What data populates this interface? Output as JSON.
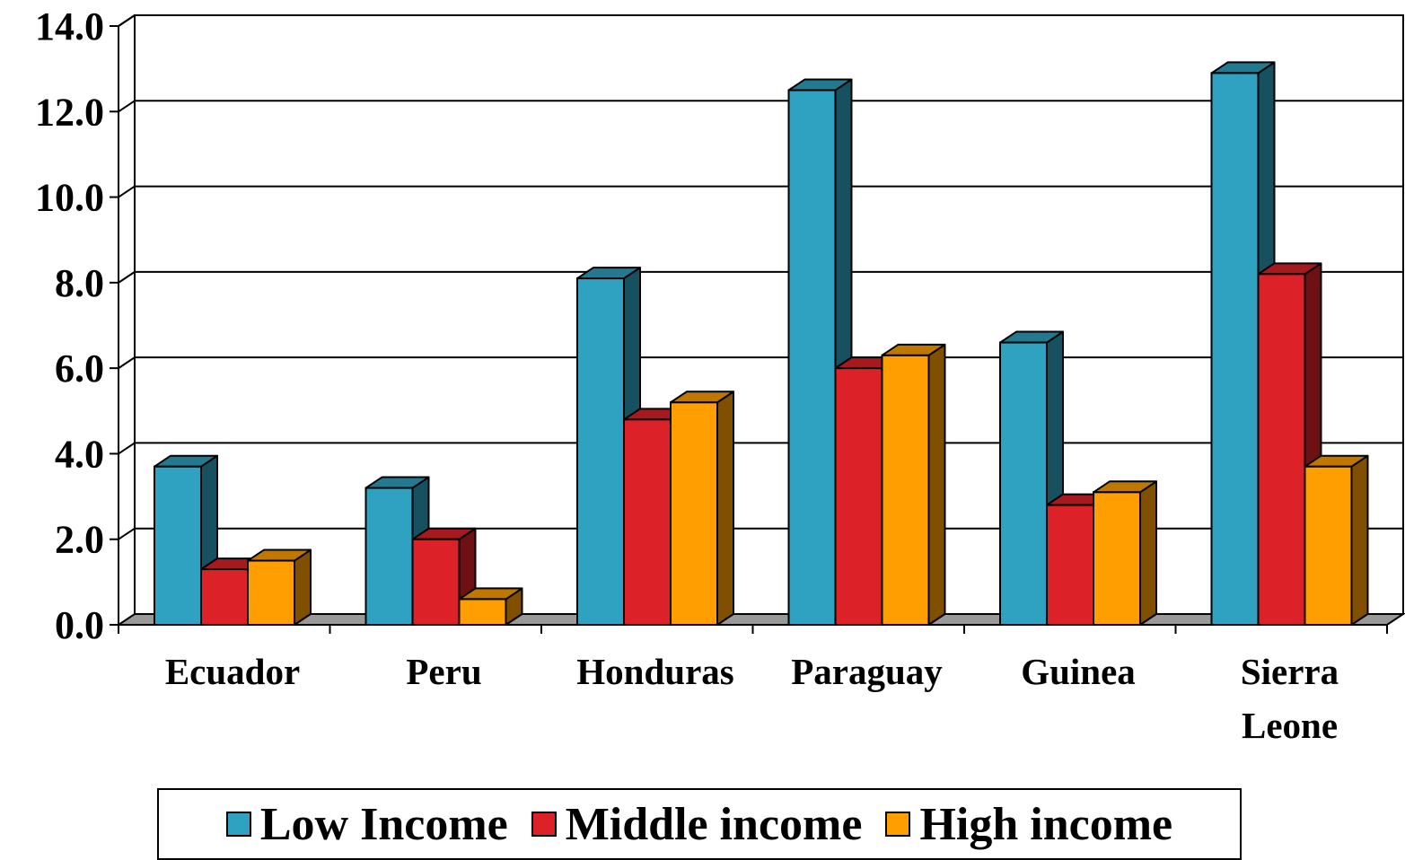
{
  "chart_data": {
    "type": "bar",
    "categories": [
      [
        "Ecuador"
      ],
      [
        "Peru"
      ],
      [
        "Honduras"
      ],
      [
        "Paraguay"
      ],
      [
        "Guinea"
      ],
      [
        "Sierra",
        "Leone"
      ]
    ],
    "series": [
      {
        "name": "Low Income",
        "values": [
          3.7,
          3.2,
          8.1,
          12.5,
          6.6,
          12.9
        ],
        "color": "#2ea2c0"
      },
      {
        "name": "Middle income",
        "values": [
          1.3,
          2.0,
          4.8,
          6.0,
          2.8,
          8.2
        ],
        "color": "#dc2129"
      },
      {
        "name": "High income",
        "values": [
          1.5,
          0.6,
          5.2,
          6.3,
          3.1,
          3.7
        ],
        "color": "#ff9e00"
      }
    ],
    "yticks": [
      "0.0",
      "2.0",
      "4.0",
      "6.0",
      "8.0",
      "10.0",
      "12.0",
      "14.0"
    ],
    "ylim": [
      0,
      14
    ],
    "grid": true,
    "style": "3d-clustered-columns",
    "legend_position": "bottom"
  }
}
